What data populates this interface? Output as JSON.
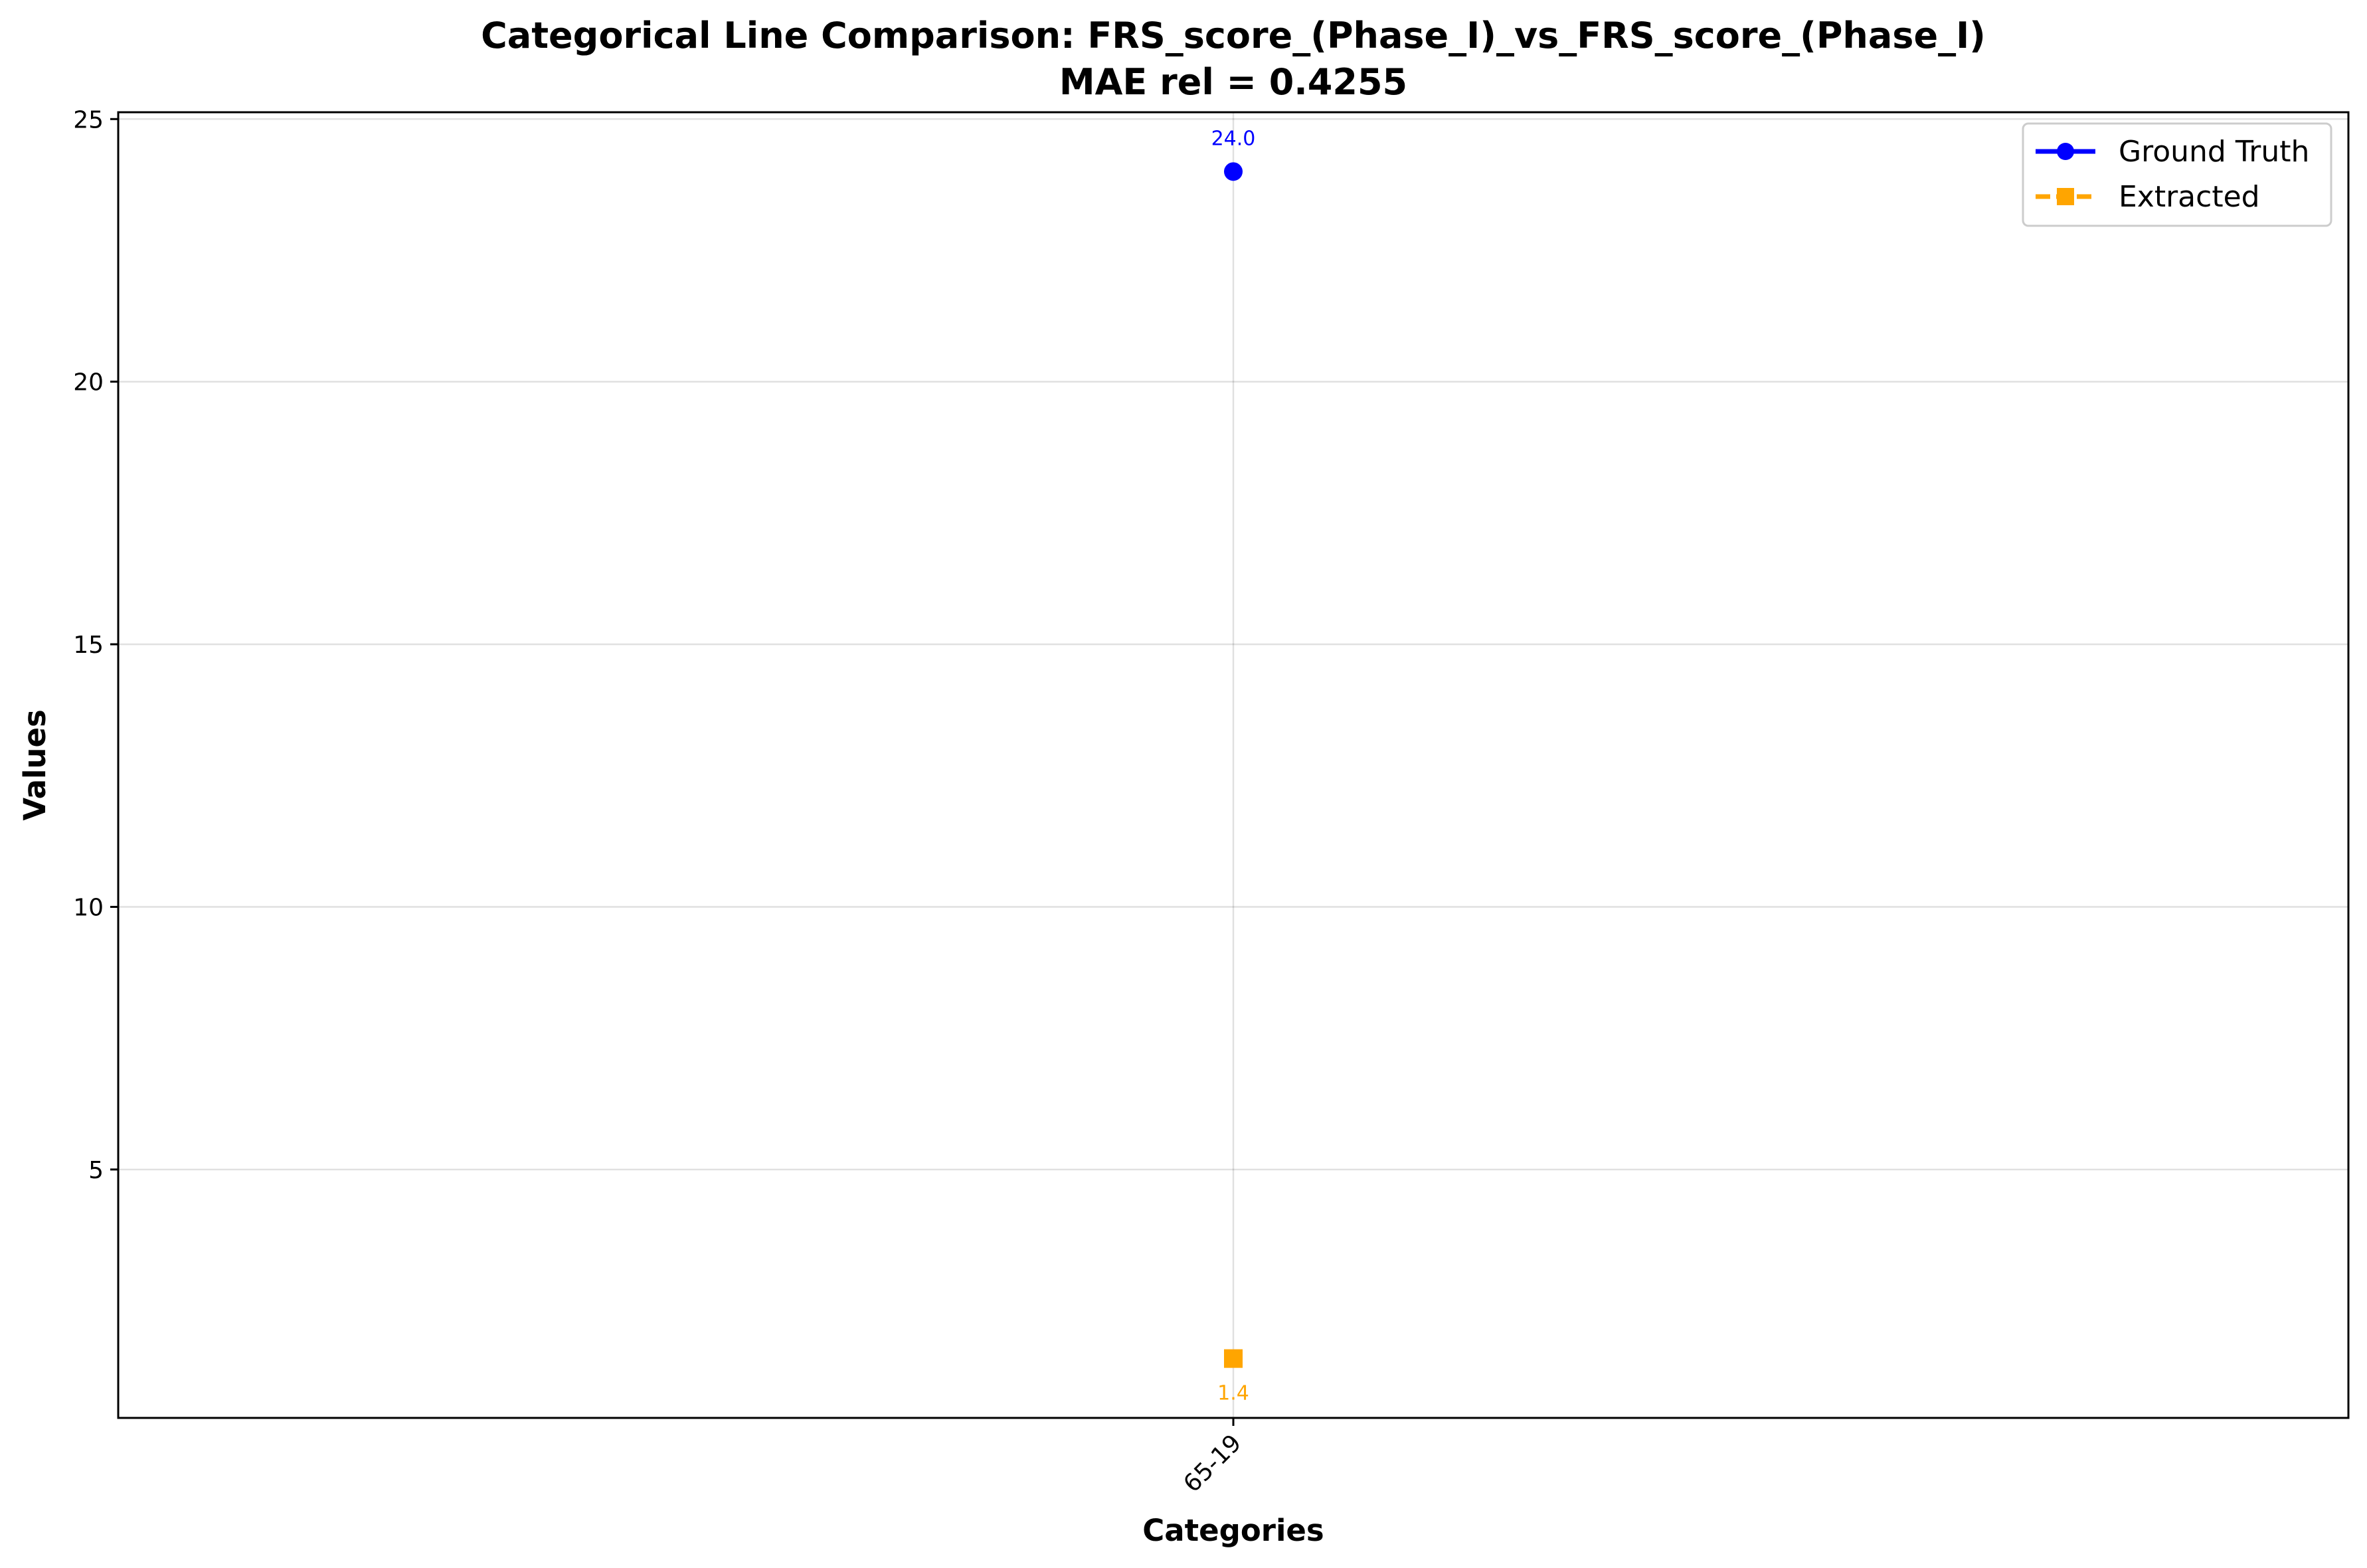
{
  "chart_data": {
    "type": "line",
    "title": "Categorical Line Comparison: FRS_score_(Phase_I)_vs_FRS_score_(Phase_I)",
    "subtitle": "MAE rel = 0.4255",
    "xlabel": "Categories",
    "ylabel": "Values",
    "categories": [
      "65-19"
    ],
    "yticks": [
      5,
      10,
      15,
      20,
      25
    ],
    "ylim": [
      0.27,
      25.13
    ],
    "grid": true,
    "legend_position": "top-right",
    "series": [
      {
        "name": "Ground Truth",
        "values": [
          24.0
        ],
        "labels": [
          "24.0"
        ],
        "color": "#0000ff",
        "marker": "circle",
        "line_style": "solid"
      },
      {
        "name": "Extracted",
        "values": [
          1.4
        ],
        "labels": [
          "1.4"
        ],
        "color": "#ffa500",
        "marker": "square",
        "line_style": "dashed"
      }
    ]
  }
}
